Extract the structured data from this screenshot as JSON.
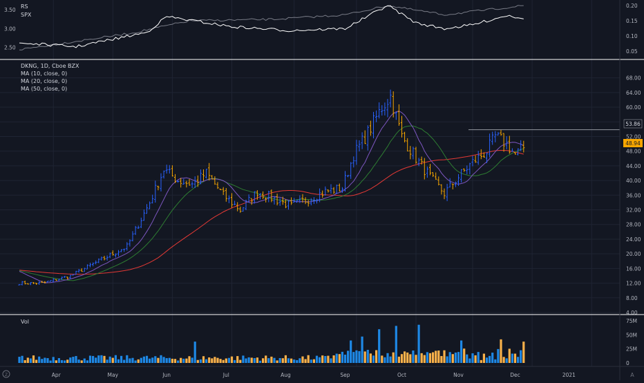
{
  "colors": {
    "background": "#131722",
    "grid": "#1f2433",
    "axis_text": "#b2b5be",
    "legend_text": "#d1d4dc",
    "separator": "#ffffff",
    "up": "#2962ff",
    "down": "#f7a600",
    "up_bar": "#1e88e5",
    "down_bar": "#f9b14a",
    "ma10": "#7e57c2",
    "ma20": "#2e7d32",
    "ma50": "#e53935",
    "rs_line": "#ffffff",
    "spx_line": "#787b86",
    "last_price_label": "#f7a600",
    "level_label": "#9598a1"
  },
  "rs_pane": {
    "legend": [
      "RS",
      "SPX"
    ],
    "left_ticks": [
      "3.50",
      "3.00",
      "2.50"
    ],
    "right_ticks": [
      "0.20",
      "0.15",
      "0.10",
      "0.05"
    ]
  },
  "price_pane": {
    "legend": [
      "DKNG, 1D, Cboe BZX",
      "MA (10, close, 0)",
      "MA (20, close, 0)",
      "MA (50, close, 0)"
    ],
    "right_ticks": [
      "68.00",
      "64.00",
      "60.00",
      "56.00",
      "52.00",
      "48.00",
      "44.00",
      "40.00",
      "36.00",
      "32.00",
      "28.00",
      "24.00",
      "20.00",
      "16.00",
      "12.00",
      "8.00",
      "4.00"
    ],
    "level_label": "53.86",
    "last_price_label": "48.94"
  },
  "volume_pane": {
    "legend": "Vol",
    "right_ticks": [
      "75M",
      "50M",
      "25M",
      "0"
    ]
  },
  "x_axis": {
    "labels": [
      "Apr",
      "May",
      "Jun",
      "Jul",
      "Aug",
      "Sep",
      "Oct",
      "Nov",
      "Dec",
      "2021"
    ]
  },
  "chart_data": {
    "type": "ohlc",
    "symbol": "DKNG",
    "interval": "1D",
    "exchange": "Cboe BZX",
    "ylim": [
      4,
      70
    ],
    "volume_ylim": [
      0,
      80
    ],
    "horizontal_level": 53.86,
    "last_price": 48.94,
    "anchors": [
      {
        "day": 0,
        "price": 12
      },
      {
        "day": 8,
        "price": 12
      },
      {
        "day": 18,
        "price": 14
      },
      {
        "day": 28,
        "price": 18
      },
      {
        "day": 38,
        "price": 22
      },
      {
        "day": 46,
        "price": 34
      },
      {
        "day": 51,
        "price": 43
      },
      {
        "day": 56,
        "price": 40
      },
      {
        "day": 61,
        "price": 39
      },
      {
        "day": 66,
        "price": 42
      },
      {
        "day": 72,
        "price": 36
      },
      {
        "day": 78,
        "price": 32
      },
      {
        "day": 84,
        "price": 37
      },
      {
        "day": 90,
        "price": 35
      },
      {
        "day": 96,
        "price": 33
      },
      {
        "day": 102,
        "price": 35
      },
      {
        "day": 108,
        "price": 37
      },
      {
        "day": 114,
        "price": 38
      },
      {
        "day": 118,
        "price": 47
      },
      {
        "day": 123,
        "price": 53
      },
      {
        "day": 128,
        "price": 60
      },
      {
        "day": 131,
        "price": 63
      },
      {
        "day": 135,
        "price": 52
      },
      {
        "day": 141,
        "price": 45
      },
      {
        "day": 146,
        "price": 40
      },
      {
        "day": 150,
        "price": 36.5
      },
      {
        "day": 155,
        "price": 41
      },
      {
        "day": 160,
        "price": 45
      },
      {
        "day": 165,
        "price": 48
      },
      {
        "day": 168,
        "price": 52
      },
      {
        "day": 172,
        "price": 50
      },
      {
        "day": 175,
        "price": 47
      },
      {
        "day": 178,
        "price": 49
      }
    ],
    "volume_spikes": [
      {
        "day": 62,
        "value": 38
      },
      {
        "day": 117,
        "value": 40
      },
      {
        "day": 121,
        "value": 47
      },
      {
        "day": 127,
        "value": 60
      },
      {
        "day": 133,
        "value": 66
      },
      {
        "day": 141,
        "value": 68
      },
      {
        "day": 156,
        "value": 40
      },
      {
        "day": 170,
        "value": 42
      },
      {
        "day": 178,
        "value": 38
      }
    ],
    "rs_series": {
      "anchors": [
        [
          0,
          2.62
        ],
        [
          20,
          2.52
        ],
        [
          45,
          2.9
        ],
        [
          52,
          3.32
        ],
        [
          75,
          3.05
        ],
        [
          95,
          2.95
        ],
        [
          115,
          3.0
        ],
        [
          130,
          3.62
        ],
        [
          140,
          3.15
        ],
        [
          150,
          3.0
        ],
        [
          160,
          3.1
        ],
        [
          172,
          3.35
        ],
        [
          178,
          3.28
        ]
      ]
    },
    "spx_series": {
      "anchors": [
        [
          0,
          0.055
        ],
        [
          40,
          0.11
        ],
        [
          60,
          0.15
        ],
        [
          90,
          0.155
        ],
        [
          115,
          0.17
        ],
        [
          130,
          0.2
        ],
        [
          150,
          0.17
        ],
        [
          178,
          0.2
        ]
      ]
    }
  }
}
